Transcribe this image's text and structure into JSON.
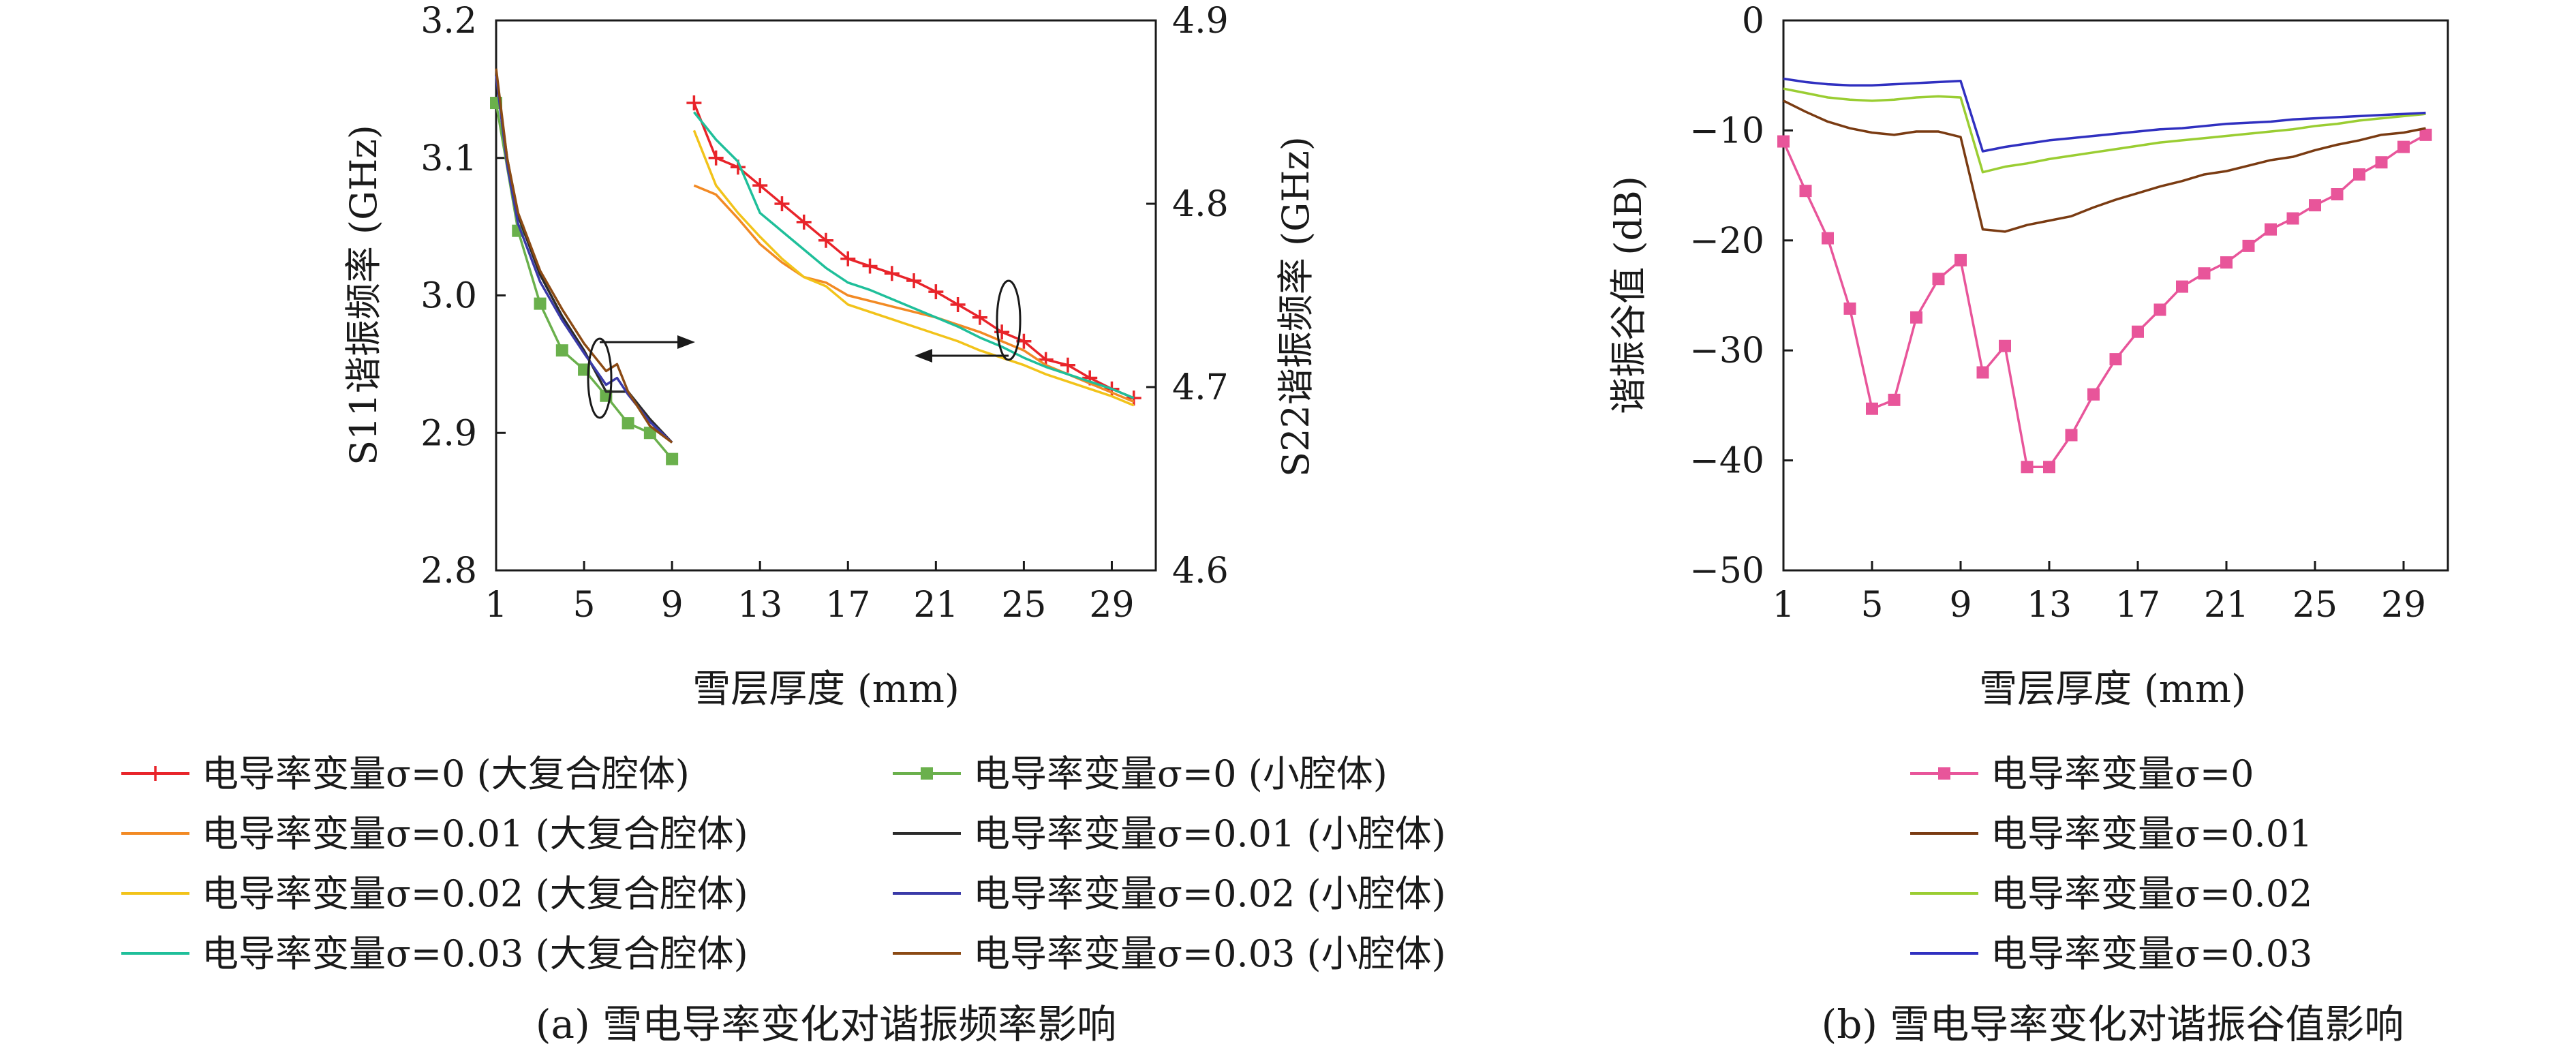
{
  "charts": {
    "a": {
      "caption": "(a) 雪电导率变化对谐振频率影响",
      "xlabel": "雪层厚度 (mm)",
      "ylabel_left": "S11谐振频率 (GHz)",
      "ylabel_right": "S22谐振频率 (GHz)",
      "legend": [
        "电导率变量σ=0 (大复合腔体)",
        "电导率变量σ=0 (小腔体)",
        "电导率变量σ=0.01 (大复合腔体)",
        "电导率变量σ=0.01 (小腔体)",
        "电导率变量σ=0.02 (大复合腔体)",
        "电导率变量σ=0.02 (小腔体)",
        "电导率变量σ=0.03 (大复合腔体)",
        "电导率变量σ=0.03 (小腔体)"
      ]
    },
    "b": {
      "caption": "(b) 雪电导率变化对谐振谷值影响",
      "xlabel": "雪层厚度 (mm)",
      "ylabel": "谐振谷值 (dB)",
      "legend": [
        "电导率变量σ=0",
        "电导率变量σ=0.01",
        "电导率变量σ=0.02",
        "电导率变量σ=0.03"
      ]
    }
  },
  "chart_data": [
    {
      "type": "line",
      "x_ticks": [
        1,
        5,
        9,
        13,
        17,
        21,
        25,
        29
      ],
      "xlim": [
        1,
        31
      ],
      "ylim_left": [
        2.8,
        3.2
      ],
      "yticks_left": [
        "2.8",
        "2.9",
        "3.0",
        "3.1",
        "3.2"
      ],
      "ylim_right": [
        4.6,
        4.9
      ],
      "yticks_right": [
        "4.6",
        "4.7",
        "4.8",
        "4.9"
      ],
      "grid": false,
      "series": [
        {
          "name": "电导率变量σ=0 (小腔体)",
          "axis": "left",
          "color": "#6ab04c",
          "marker": "square",
          "x": [
            1,
            2,
            3,
            4,
            5,
            6,
            7,
            8,
            9
          ],
          "y": [
            3.14,
            3.047,
            2.994,
            2.96,
            2.946,
            2.927,
            2.907,
            2.9,
            2.881
          ]
        },
        {
          "name": "电导率变量σ=0.01 (小腔体)",
          "axis": "left",
          "color": "#2b2b2b",
          "marker": "none",
          "x": [
            1,
            1.5,
            2,
            3,
            4,
            5,
            6,
            7,
            8,
            9
          ],
          "y": [
            3.16,
            3.1,
            3.058,
            3.015,
            2.985,
            2.96,
            2.93,
            2.93,
            2.91,
            2.893
          ]
        },
        {
          "name": "电导率变量σ=0.02 (小腔体)",
          "axis": "left",
          "color": "#3a3aa8",
          "marker": "none",
          "x": [
            1,
            1.5,
            2,
            3,
            4,
            5,
            6,
            6.5,
            7,
            8,
            9
          ],
          "y": [
            3.16,
            3.095,
            3.052,
            3.01,
            2.982,
            2.958,
            2.935,
            2.94,
            2.928,
            2.908,
            2.893
          ]
        },
        {
          "name": "电导率变量σ=0.03 (小腔体)",
          "axis": "left",
          "color": "#8b4a14",
          "marker": "none",
          "x": [
            1,
            1.5,
            2,
            3,
            4,
            5,
            6,
            6.5,
            7,
            8,
            9
          ],
          "y": [
            3.165,
            3.1,
            3.06,
            3.018,
            2.99,
            2.965,
            2.945,
            2.95,
            2.93,
            2.905,
            2.893
          ]
        },
        {
          "name": "电导率变量σ=0 (大复合腔体)",
          "axis": "right",
          "color": "#e8242a",
          "marker": "plus",
          "x": [
            10,
            11,
            12,
            13,
            14,
            15,
            16,
            17,
            18,
            19,
            20,
            21,
            22,
            23,
            24,
            25,
            26,
            27,
            28,
            29,
            30
          ],
          "y": [
            4.855,
            4.825,
            4.82,
            4.81,
            4.8,
            4.79,
            4.78,
            4.77,
            4.766,
            4.762,
            4.758,
            4.752,
            4.745,
            4.738,
            4.73,
            4.725,
            4.715,
            4.712,
            4.705,
            4.699,
            4.694
          ]
        },
        {
          "name": "电导率变量σ=0.01 (大复合腔体)",
          "axis": "right",
          "color": "#f28a24",
          "marker": "none",
          "x": [
            10,
            11,
            12,
            13,
            14,
            15,
            16,
            17,
            18,
            19,
            20,
            21,
            22,
            23,
            24,
            25,
            26,
            27,
            28,
            29,
            30
          ],
          "y": [
            4.81,
            4.805,
            4.792,
            4.778,
            4.768,
            4.76,
            4.757,
            4.75,
            4.747,
            4.744,
            4.741,
            4.738,
            4.734,
            4.73,
            4.725,
            4.72,
            4.712,
            4.707,
            4.702,
            4.697,
            4.692
          ]
        },
        {
          "name": "电导率变量σ=0.02 (大复合腔体)",
          "axis": "right",
          "color": "#f2c31a",
          "marker": "none",
          "x": [
            10,
            11,
            12,
            13,
            14,
            15,
            16,
            17,
            18,
            19,
            20,
            21,
            22,
            23,
            24,
            25,
            26,
            27,
            28,
            29,
            30
          ],
          "y": [
            4.84,
            4.81,
            4.795,
            4.782,
            4.77,
            4.76,
            4.755,
            4.745,
            4.741,
            4.737,
            4.733,
            4.729,
            4.725,
            4.72,
            4.716,
            4.712,
            4.707,
            4.703,
            4.699,
            4.695,
            4.69
          ]
        },
        {
          "name": "电导率变量σ=0.03 (大复合腔体)",
          "axis": "right",
          "color": "#1fbf9a",
          "marker": "none",
          "x": [
            10,
            11,
            12,
            13,
            14,
            15,
            16,
            17,
            18,
            19,
            20,
            21,
            22,
            23,
            24,
            25,
            26,
            27,
            28,
            29,
            30
          ],
          "y": [
            4.85,
            4.835,
            4.823,
            4.795,
            4.785,
            4.775,
            4.765,
            4.757,
            4.753,
            4.748,
            4.743,
            4.738,
            4.733,
            4.727,
            4.722,
            4.716,
            4.711,
            4.707,
            4.703,
            4.699,
            4.694
          ]
        }
      ],
      "annotations": [
        "ellipse with arrow to right axis near x=5.5",
        "ellipse with arrow to left axis near x=24"
      ]
    },
    {
      "type": "line",
      "x_ticks": [
        1,
        5,
        9,
        13,
        17,
        21,
        25,
        29
      ],
      "xlim": [
        1,
        31
      ],
      "ylim": [
        -50,
        0
      ],
      "yticks": [
        "0",
        "−10",
        "−20",
        "−30",
        "−40",
        "−50"
      ],
      "grid": false,
      "series": [
        {
          "name": "电导率变量σ=0",
          "color": "#e8559a",
          "marker": "square",
          "x": [
            1,
            2,
            3,
            4,
            5,
            6,
            7,
            8,
            9,
            10,
            11,
            12,
            13,
            14,
            15,
            16,
            17,
            18,
            19,
            20,
            21,
            22,
            23,
            24,
            25,
            26,
            27,
            28,
            29,
            30
          ],
          "y": [
            -11,
            -15.5,
            -19.8,
            -26.2,
            -35.3,
            -34.5,
            -27.0,
            -23.5,
            -21.8,
            -32.0,
            -29.6,
            -40.6,
            -40.6,
            -37.7,
            -34.0,
            -30.8,
            -28.3,
            -26.3,
            -24.2,
            -23.0,
            -22.0,
            -20.5,
            -19.0,
            -18.0,
            -16.8,
            -15.8,
            -14.0,
            -12.9,
            -11.5,
            -10.4
          ]
        },
        {
          "name": "电导率变量σ=0.01",
          "color": "#7a3b12",
          "marker": "none",
          "x": [
            1,
            2,
            3,
            4,
            5,
            6,
            7,
            8,
            9,
            10,
            11,
            12,
            13,
            14,
            15,
            16,
            17,
            18,
            19,
            20,
            21,
            22,
            23,
            24,
            25,
            26,
            27,
            28,
            29,
            30
          ],
          "y": [
            -7.3,
            -8.3,
            -9.2,
            -9.8,
            -10.2,
            -10.4,
            -10.1,
            -10.1,
            -10.6,
            -19.0,
            -19.2,
            -18.6,
            -18.2,
            -17.8,
            -17.0,
            -16.3,
            -15.7,
            -15.1,
            -14.6,
            -14.0,
            -13.7,
            -13.2,
            -12.7,
            -12.4,
            -11.8,
            -11.3,
            -10.9,
            -10.4,
            -10.2,
            -9.8
          ]
        },
        {
          "name": "电导率变量σ=0.02",
          "color": "#9acd32",
          "marker": "none",
          "x": [
            1,
            2,
            3,
            4,
            5,
            6,
            7,
            8,
            9,
            10,
            11,
            12,
            13,
            14,
            15,
            16,
            17,
            18,
            19,
            20,
            21,
            22,
            23,
            24,
            25,
            26,
            27,
            28,
            29,
            30
          ],
          "y": [
            -6.2,
            -6.6,
            -7.0,
            -7.2,
            -7.3,
            -7.2,
            -7.0,
            -6.9,
            -7.0,
            -13.8,
            -13.3,
            -13.0,
            -12.6,
            -12.3,
            -12.0,
            -11.7,
            -11.4,
            -11.1,
            -10.9,
            -10.7,
            -10.5,
            -10.3,
            -10.1,
            -9.9,
            -9.6,
            -9.4,
            -9.1,
            -8.9,
            -8.7,
            -8.5
          ]
        },
        {
          "name": "电导率变量σ=0.03",
          "color": "#3030c0",
          "marker": "none",
          "x": [
            1,
            2,
            3,
            4,
            5,
            6,
            7,
            8,
            9,
            10,
            11,
            12,
            13,
            14,
            15,
            16,
            17,
            18,
            19,
            20,
            21,
            22,
            23,
            24,
            25,
            26,
            27,
            28,
            29,
            30
          ],
          "y": [
            -5.3,
            -5.6,
            -5.8,
            -5.9,
            -5.9,
            -5.8,
            -5.7,
            -5.6,
            -5.5,
            -11.9,
            -11.5,
            -11.2,
            -10.9,
            -10.7,
            -10.5,
            -10.3,
            -10.1,
            -9.9,
            -9.8,
            -9.6,
            -9.4,
            -9.3,
            -9.2,
            -9.0,
            -8.9,
            -8.8,
            -8.7,
            -8.6,
            -8.5,
            -8.4
          ]
        }
      ]
    }
  ]
}
